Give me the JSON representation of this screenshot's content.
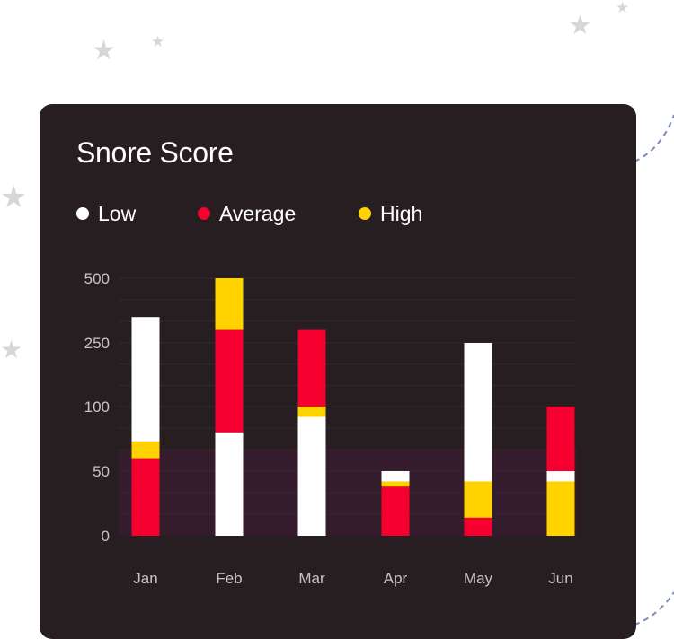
{
  "decorations": {
    "star_icon": "star-icon",
    "star_color": "#d7d7da",
    "dash_color": "#7d8bbd"
  },
  "card": {
    "title": "Snore Score",
    "background": "#271e22",
    "band_color": "#341c2c"
  },
  "legend": [
    {
      "label": "Low",
      "color": "#ffffff"
    },
    {
      "label": "Average",
      "color": "#f5002f"
    },
    {
      "label": "High",
      "color": "#ffd200"
    }
  ],
  "chart_data": {
    "type": "bar",
    "stacked": true,
    "title": "Snore Score",
    "categories": [
      "Jan",
      "Feb",
      "Mar",
      "Apr",
      "May",
      "Jun"
    ],
    "y_ticks": [
      "0",
      "50",
      "100",
      "250",
      "500"
    ],
    "y_scale": "non-linear (tick labels 0, 50, 100, 250, 500 at equal spacing)",
    "grid": true,
    "legend_position": "top",
    "series": [
      {
        "name": "Average",
        "color": "#f5002f",
        "segments": [
          [
            0,
            60
          ],
          [
            80,
            300
          ],
          [
            100,
            300
          ],
          [
            0,
            38
          ],
          [
            0,
            14
          ],
          [
            50,
            100
          ]
        ]
      },
      {
        "name": "High",
        "color": "#ffd200",
        "segments": [
          [
            60,
            73
          ],
          [
            300,
            500
          ],
          [
            92,
            100
          ],
          [
            38,
            42
          ],
          [
            14,
            42
          ],
          [
            0,
            42
          ]
        ]
      },
      {
        "name": "Low",
        "color": "#ffffff",
        "segments": [
          [
            73,
            350
          ],
          [
            0,
            80
          ],
          [
            0,
            92
          ],
          [
            42,
            50
          ],
          [
            42,
            250
          ],
          [
            42,
            50
          ]
        ]
      }
    ]
  }
}
